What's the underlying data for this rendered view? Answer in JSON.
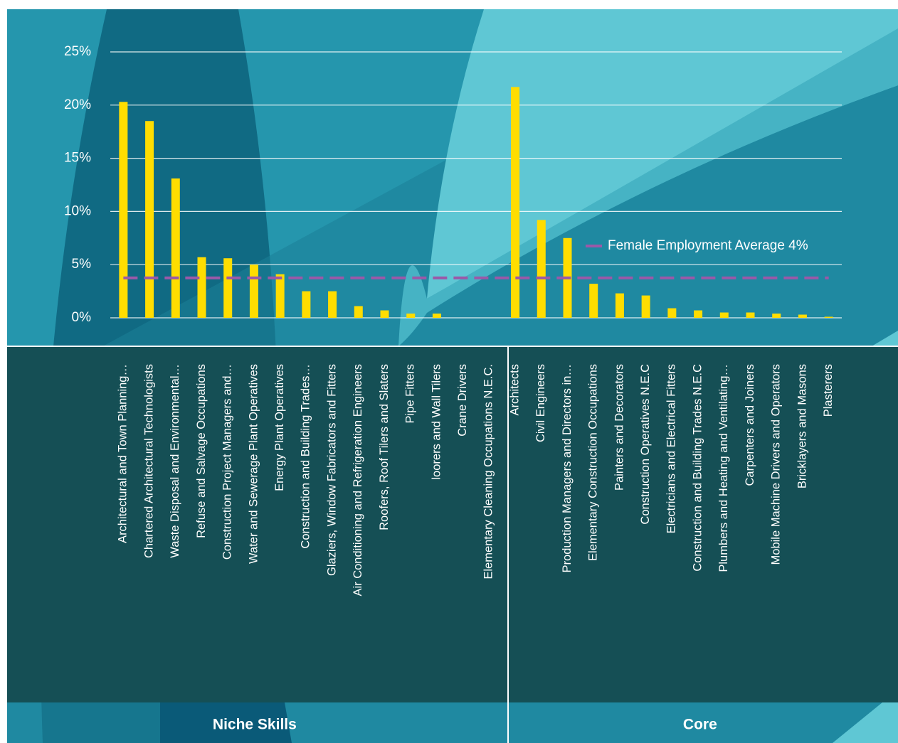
{
  "chart_data": {
    "type": "bar",
    "categories": [
      "Architectural and Town Planning…",
      "Chartered Architectural Technologists",
      "Waste Disposal and Environmental…",
      "Refuse and Salvage Occupations",
      "Construction Project Managers and…",
      "Water and Sewerage Plant Operatives",
      "Energy Plant Operatives",
      "Construction and Building Trades…",
      "Glaziers, Window Fabricators and Fitters",
      "Air Conditioning and Refrigeration Engineers",
      "Roofers, Roof Tilers and Slaters",
      "Pipe Fitters",
      "loorers and Wall Tilers",
      "Crane Drivers",
      "Elementary Cleaning Occupations N.E.C.",
      "Architects",
      "Civil Engineers",
      "Production Managers and Directors in…",
      "Elementary Construction Occupations",
      "Painters and Decorators",
      "Construction Operatives N.E.C",
      "Electricians and Electrical Fitters",
      "Construction and Building Trades N.E.C",
      "Plumbers and Heating and Ventilating…",
      "Carpenters and Joiners",
      "Mobile Machine Drivers and Operators",
      "Bricklayers and Masons",
      "Plasterers"
    ],
    "values": [
      20.3,
      18.5,
      13.1,
      5.7,
      5.6,
      5.0,
      4.1,
      2.5,
      2.5,
      1.1,
      0.7,
      0.4,
      0.4,
      0,
      0,
      21.7,
      9.2,
      7.5,
      3.2,
      2.3,
      2.1,
      0.9,
      0.7,
      0.5,
      0.5,
      0.4,
      0.3,
      0.1
    ],
    "color": "#ffdd00",
    "groups": [
      {
        "label": "Niche Skills",
        "size": 15
      },
      {
        "label": "Core",
        "size": 13
      }
    ],
    "reference_line": {
      "value": 3.75,
      "label": "Female Employment Average 4%",
      "color": "#9b59a8"
    },
    "ylim": [
      0,
      25
    ],
    "yticks": [
      {
        "value": 0,
        "label": "0%"
      },
      {
        "value": 5,
        "label": "5%"
      },
      {
        "value": 10,
        "label": "10%"
      },
      {
        "value": 15,
        "label": "15%"
      },
      {
        "value": 20,
        "label": "20%"
      },
      {
        "value": 25,
        "label": "25%"
      }
    ],
    "grid": true
  }
}
